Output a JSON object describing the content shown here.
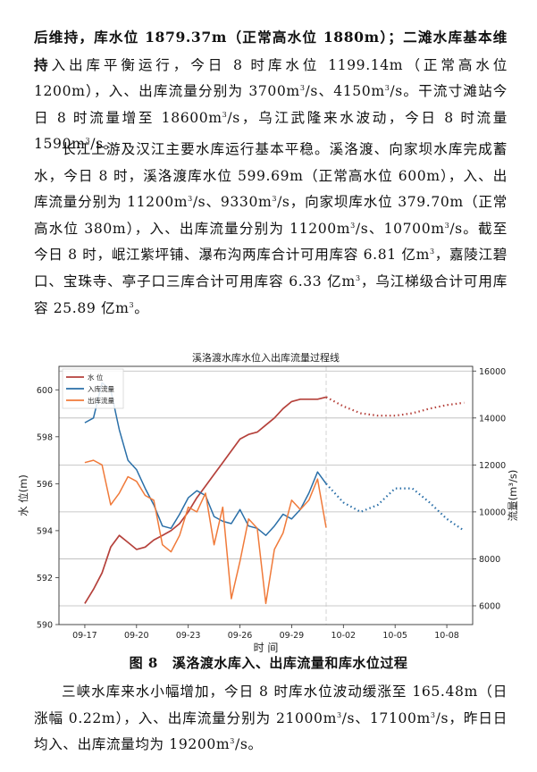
{
  "paragraphs": {
    "p1": {
      "lead_bold": "后维持，库水位 1879.37m（正常高水位 1880m）；二滩水库基本维持",
      "text_a": "入出库平衡运行，今日 8 时库水位 1199.14m（正常高水位 1200m），入、出库流量分别为 3700m",
      "text_b": "/s、4150m",
      "text_c": "/s。干流寸滩站今日 8 时流量增至 18600m",
      "text_d": "/s，乌江武隆来水波动，今日 8 时流量 1590m",
      "text_e": "/s。"
    },
    "p2": {
      "text_a": "长江上游及汉江主要水库运行基本平稳。溪洛渡、向家坝水库完成蓄水，今日 8 时，溪洛渡库水位 599.69m（正常高水位 600m），入、出库流量分别为 11200m",
      "text_b": "/s、9330m",
      "text_c": "/s，向家坝库水位 379.70m（正常高水位 380m），入、出库流量分别为 11200m",
      "text_d": "/s、10700m",
      "text_e": "/s。截至今日 8 时，岷江紫坪铺、瀑布沟两库合计可用库容 6.81 亿m",
      "text_f": "，嘉陵江碧口、宝珠寺、亭子口三库合计可用库容 6.33 亿m",
      "text_g": "，乌江梯级合计可用库容 25.89 亿m",
      "text_h": "。"
    },
    "p3": {
      "text_a": "三峡水库来水小幅增加，今日 8 时库水位波动缓涨至 165.48m（日涨幅 0.22m），入、出库流量分别为 21000m",
      "text_b": "/s、17100m",
      "text_c": "/s，昨日日均入、出库流量均为 19200m",
      "text_d": "/s。"
    },
    "sup3": "3",
    "sup2": "3"
  },
  "caption": {
    "number": "图 8",
    "text": "溪洛渡水库入、出库流量和库水位过程"
  },
  "chart_data": {
    "type": "line",
    "title": "溪洛渡水库水位入出库流量过程线",
    "xlabel": "时  间",
    "ylabel_left": "水 位(m)",
    "ylabel_right": "流量(m³/s)",
    "x_ticks": [
      "09-17",
      "09-20",
      "09-23",
      "09-26",
      "09-29",
      "10-02",
      "10-05",
      "10-08"
    ],
    "x_range_days": [
      -1.5,
      22.5
    ],
    "ylim_left": [
      590,
      601
    ],
    "y_ticks_left": [
      "590",
      "592",
      "594",
      "596",
      "598",
      "600"
    ],
    "ylim_right": [
      5200,
      16200
    ],
    "y_ticks_right": [
      "6000",
      "8000",
      "10000",
      "12000",
      "14000",
      "16000"
    ],
    "now_day": 14.0,
    "legend": [
      "水      位",
      "入库流量",
      "出库流量"
    ],
    "colors": {
      "level": "#b5413b",
      "inflow": "#2a6fa8",
      "outflow": "#f07a3a",
      "grid": "#b8b8b8",
      "now": "#c8c8c8"
    },
    "series": [
      {
        "name": "水      位",
        "axis": "left",
        "x": [
          0,
          0.5,
          1,
          1.5,
          2,
          2.5,
          3,
          3.5,
          4,
          4.5,
          5,
          5.5,
          6,
          6.5,
          7,
          7.5,
          8,
          8.5,
          9,
          9.5,
          10,
          10.5,
          11,
          11.5,
          12,
          12.5,
          13,
          13.5,
          14
        ],
        "y": [
          590.9,
          591.5,
          592.2,
          593.3,
          593.8,
          593.5,
          593.2,
          593.3,
          593.6,
          593.8,
          594.0,
          594.3,
          594.8,
          595.4,
          595.9,
          596.4,
          596.9,
          597.4,
          597.9,
          598.1,
          598.2,
          598.5,
          598.8,
          599.2,
          599.5,
          599.6,
          599.6,
          599.6,
          599.69
        ]
      },
      {
        "name": "水位预报",
        "axis": "left",
        "dashed": true,
        "x": [
          14,
          15,
          16,
          17,
          18,
          19,
          20,
          21,
          22
        ],
        "y": [
          599.69,
          599.3,
          599.0,
          598.9,
          598.9,
          599.0,
          599.2,
          599.35,
          599.45
        ]
      },
      {
        "name": "入库流量",
        "axis": "right",
        "x": [
          0,
          0.5,
          1,
          1.5,
          2,
          2.5,
          3,
          3.5,
          4,
          4.5,
          5,
          5.5,
          6,
          6.5,
          7,
          7.5,
          8,
          8.5,
          9,
          9.5,
          10,
          10.5,
          11,
          11.5,
          12,
          12.5,
          13,
          13.5,
          14
        ],
        "y": [
          13800,
          14000,
          15500,
          15200,
          13500,
          12200,
          11800,
          11000,
          10300,
          9400,
          9300,
          9900,
          10600,
          10900,
          10700,
          9800,
          9600,
          9500,
          10100,
          9400,
          9300,
          9000,
          9400,
          9900,
          9700,
          10100,
          10800,
          11700,
          11200
        ]
      },
      {
        "name": "入库流量预报",
        "axis": "right",
        "dashed": true,
        "x": [
          14,
          15,
          16,
          17,
          18,
          19,
          20,
          21,
          22
        ],
        "y": [
          11200,
          10400,
          10000,
          10300,
          11000,
          11000,
          10400,
          9700,
          9200
        ]
      },
      {
        "name": "出库流量",
        "axis": "right",
        "x": [
          0,
          0.5,
          1,
          1.5,
          2,
          2.5,
          3,
          3.5,
          4,
          4.5,
          5,
          5.5,
          6,
          6.5,
          7,
          7.5,
          8,
          8.5,
          9,
          9.5,
          10,
          10.5,
          11,
          11.5,
          12,
          12.5,
          13,
          13.5,
          14
        ],
        "y": [
          12100,
          12200,
          12000,
          10300,
          10800,
          11500,
          11300,
          10700,
          10500,
          8600,
          8300,
          9000,
          10200,
          10000,
          10800,
          8600,
          10200,
          6300,
          7900,
          9700,
          9300,
          6100,
          8400,
          9100,
          10500,
          10100,
          10500,
          11400,
          9330
        ]
      }
    ]
  }
}
